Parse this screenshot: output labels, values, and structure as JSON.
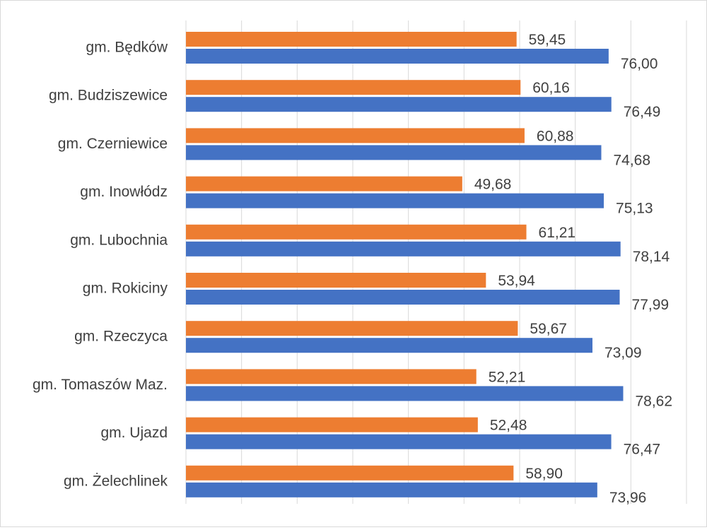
{
  "chart_data": {
    "type": "bar",
    "orientation": "horizontal",
    "title": "",
    "xlabel": "",
    "ylabel": "",
    "xlim": [
      0,
      90
    ],
    "grid": "vertical",
    "legend": "none",
    "value_format": "comma-decimal-2",
    "categories": [
      "gm. Będków",
      "gm. Budziszewice",
      "gm. Czerniewice",
      "gm. Inowłódz",
      "gm. Lubochnia",
      "gm. Rokiciny",
      "gm. Rzeczyca",
      "gm. Tomaszów Maz.",
      "gm. Ujazd",
      "gm. Żelechlinek"
    ],
    "series": [
      {
        "color": "#ED7D31",
        "values": [
          59.45,
          60.16,
          60.88,
          49.68,
          61.21,
          53.94,
          59.67,
          52.21,
          52.48,
          58.9
        ],
        "labels": [
          "59,45",
          "60,16",
          "60,88",
          "49,68",
          "61,21",
          "53,94",
          "59,67",
          "52,21",
          "52,48",
          "58,90"
        ]
      },
      {
        "color": "#4472C4",
        "values": [
          76.0,
          76.49,
          74.68,
          75.13,
          78.14,
          77.99,
          73.09,
          78.62,
          76.47,
          73.96
        ],
        "labels": [
          "76,00",
          "76,49",
          "74,68",
          "75,13",
          "78,14",
          "77,99",
          "73,09",
          "78,62",
          "76,47",
          "73,96"
        ]
      }
    ]
  }
}
